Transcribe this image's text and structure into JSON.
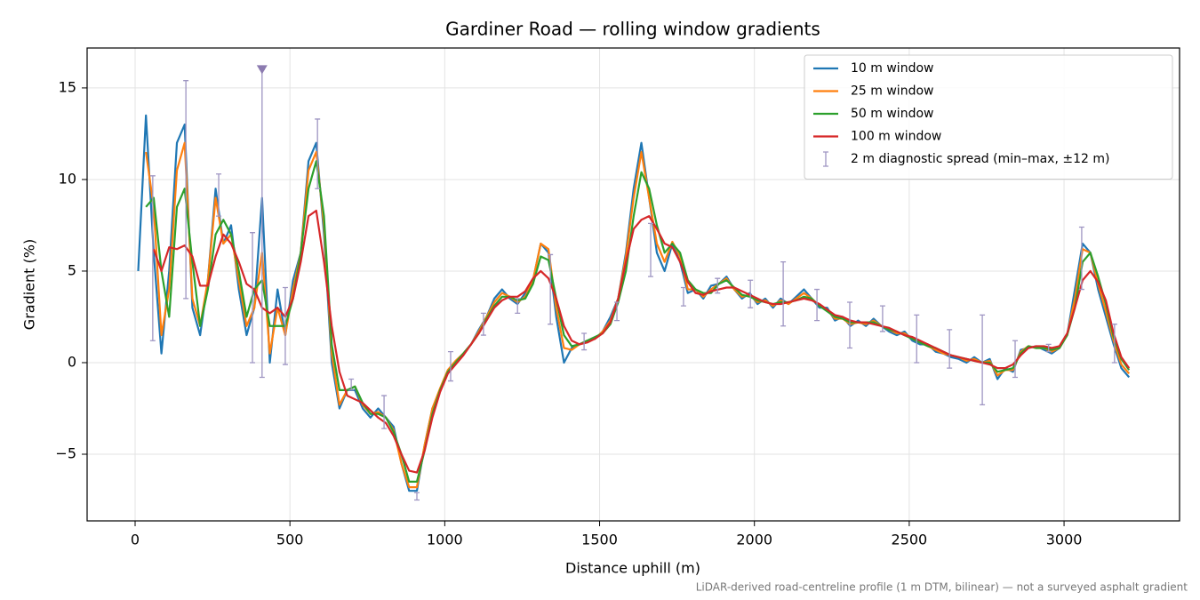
{
  "chart_data": {
    "type": "line",
    "title": "Gardiner Road — rolling window gradients",
    "xlabel": "Distance uphill (m)",
    "ylabel": "Gradient (%)",
    "footnote": "LiDAR-derived road-centreline profile (1 m DTM, bilinear) — not a surveyed asphalt gradient",
    "xlim": [
      -155,
      3373
    ],
    "ylim": [
      -8.64,
      17.18
    ],
    "xticks": [
      0,
      500,
      1000,
      1500,
      2000,
      2500,
      3000
    ],
    "yticks": [
      {
        "value": -5,
        "label": "−5"
      },
      0,
      5,
      10,
      15
    ],
    "grid": true,
    "legend": "upper right",
    "x": [
      10,
      35,
      60,
      85,
      110,
      135,
      160,
      185,
      210,
      235,
      260,
      285,
      310,
      335,
      360,
      385,
      410,
      435,
      460,
      485,
      510,
      535,
      560,
      585,
      610,
      635,
      660,
      685,
      710,
      735,
      760,
      785,
      810,
      835,
      860,
      885,
      910,
      935,
      960,
      985,
      1010,
      1035,
      1060,
      1085,
      1110,
      1135,
      1160,
      1185,
      1210,
      1235,
      1260,
      1285,
      1310,
      1335,
      1360,
      1385,
      1410,
      1435,
      1460,
      1485,
      1510,
      1535,
      1560,
      1585,
      1610,
      1635,
      1660,
      1685,
      1710,
      1735,
      1760,
      1785,
      1810,
      1835,
      1860,
      1885,
      1910,
      1935,
      1960,
      1985,
      2010,
      2035,
      2060,
      2085,
      2110,
      2135,
      2160,
      2185,
      2210,
      2235,
      2260,
      2285,
      2310,
      2335,
      2360,
      2385,
      2410,
      2435,
      2460,
      2485,
      2510,
      2535,
      2560,
      2585,
      2610,
      2635,
      2660,
      2685,
      2710,
      2735,
      2760,
      2785,
      2810,
      2835,
      2860,
      2885,
      2910,
      2935,
      2960,
      2985,
      3010,
      3035,
      3060,
      3085,
      3110,
      3135,
      3160,
      3185,
      3210
    ],
    "series": [
      {
        "name": "10 m window",
        "color": "#1f77b4",
        "values": [
          5.0,
          13.5,
          6.0,
          0.5,
          5.0,
          12.0,
          13.0,
          3.0,
          1.5,
          4.5,
          9.5,
          6.5,
          7.5,
          4.0,
          1.5,
          3.0,
          9.0,
          0.0,
          4.0,
          1.5,
          4.5,
          6.0,
          11.0,
          12.0,
          7.0,
          0.0,
          -2.5,
          -1.5,
          -1.5,
          -2.5,
          -3.0,
          -2.5,
          -3.0,
          -3.5,
          -5.5,
          -7.0,
          -7.0,
          -4.5,
          -2.5,
          -1.5,
          -0.5,
          0.0,
          0.5,
          1.0,
          1.8,
          2.5,
          3.5,
          4.0,
          3.5,
          3.2,
          3.8,
          4.5,
          6.5,
          6.0,
          2.5,
          0.0,
          0.8,
          1.0,
          1.2,
          1.3,
          1.7,
          2.5,
          3.5,
          6.0,
          9.5,
          12.0,
          9.0,
          6.0,
          5.0,
          6.5,
          5.5,
          3.8,
          4.0,
          3.5,
          4.2,
          4.3,
          4.7,
          4.0,
          3.5,
          3.8,
          3.2,
          3.5,
          3.0,
          3.5,
          3.2,
          3.6,
          4.0,
          3.5,
          3.0,
          3.0,
          2.3,
          2.5,
          2.0,
          2.3,
          2.0,
          2.4,
          2.0,
          1.7,
          1.5,
          1.7,
          1.2,
          1.0,
          1.0,
          0.6,
          0.5,
          0.3,
          0.2,
          0.0,
          0.3,
          0.0,
          0.2,
          -0.9,
          -0.3,
          -0.5,
          0.7,
          0.8,
          0.9,
          0.7,
          0.5,
          0.8,
          1.5,
          4.0,
          6.5,
          6.0,
          4.0,
          2.5,
          1.0,
          -0.3,
          -0.8
        ]
      },
      {
        "name": "25 m window",
        "color": "#ff7f0e",
        "values": [
          null,
          11.5,
          8.5,
          1.5,
          4.0,
          10.5,
          12.0,
          3.5,
          2.0,
          4.5,
          9.0,
          6.5,
          7.0,
          4.5,
          2.0,
          3.0,
          6.0,
          0.5,
          3.0,
          1.5,
          4.0,
          6.0,
          10.5,
          11.5,
          7.5,
          0.5,
          -2.3,
          -1.5,
          -1.3,
          -2.3,
          -2.8,
          -2.7,
          -3.0,
          -3.7,
          -5.5,
          -6.8,
          -6.8,
          -4.5,
          -2.5,
          -1.4,
          -0.4,
          0.1,
          0.5,
          1.0,
          1.7,
          2.5,
          3.3,
          3.8,
          3.6,
          3.3,
          3.6,
          4.5,
          6.5,
          6.2,
          3.0,
          0.8,
          0.7,
          1.0,
          1.2,
          1.3,
          1.7,
          2.3,
          3.5,
          5.8,
          9.0,
          11.5,
          9.0,
          6.5,
          5.5,
          6.6,
          5.8,
          4.0,
          4.0,
          3.6,
          4.0,
          4.3,
          4.6,
          4.0,
          3.6,
          3.7,
          3.3,
          3.4,
          3.1,
          3.4,
          3.2,
          3.5,
          3.8,
          3.5,
          3.1,
          2.9,
          2.4,
          2.4,
          2.1,
          2.2,
          2.1,
          2.3,
          2.0,
          1.8,
          1.6,
          1.6,
          1.3,
          1.1,
          0.9,
          0.7,
          0.5,
          0.4,
          0.3,
          0.1,
          0.2,
          0.0,
          0.1,
          -0.7,
          -0.4,
          -0.4,
          0.6,
          0.9,
          0.8,
          0.8,
          0.6,
          0.8,
          1.5,
          3.5,
          6.2,
          6.0,
          4.3,
          2.8,
          1.2,
          -0.1,
          -0.6
        ]
      },
      {
        "name": "50 m window",
        "color": "#2ca02c",
        "values": [
          null,
          8.5,
          9.0,
          5.0,
          2.5,
          8.5,
          9.5,
          5.5,
          2.0,
          4.0,
          7.0,
          7.8,
          7.0,
          5.0,
          2.5,
          4.0,
          4.5,
          2.0,
          2.0,
          2.0,
          3.5,
          6.0,
          9.5,
          11.0,
          8.0,
          1.0,
          -1.5,
          -1.5,
          -1.3,
          -2.2,
          -2.8,
          -2.8,
          -3.0,
          -3.8,
          -5.0,
          -6.5,
          -6.5,
          -4.8,
          -2.8,
          -1.5,
          -0.5,
          0.0,
          0.5,
          1.0,
          1.6,
          2.4,
          3.1,
          3.6,
          3.6,
          3.4,
          3.5,
          4.3,
          5.8,
          5.6,
          3.5,
          1.5,
          0.9,
          1.0,
          1.2,
          1.4,
          1.6,
          2.1,
          3.3,
          5.0,
          8.0,
          10.4,
          9.5,
          7.5,
          6.0,
          6.5,
          6.0,
          4.5,
          4.0,
          3.8,
          3.8,
          4.3,
          4.5,
          4.1,
          3.7,
          3.6,
          3.4,
          3.3,
          3.2,
          3.3,
          3.3,
          3.4,
          3.6,
          3.5,
          3.1,
          2.8,
          2.5,
          2.4,
          2.2,
          2.2,
          2.2,
          2.2,
          2.0,
          1.8,
          1.7,
          1.5,
          1.3,
          1.1,
          0.9,
          0.8,
          0.6,
          0.4,
          0.3,
          0.2,
          0.1,
          0.0,
          0.0,
          -0.5,
          -0.4,
          -0.3,
          0.5,
          0.9,
          0.8,
          0.8,
          0.7,
          0.8,
          1.5,
          3.0,
          5.5,
          6.0,
          4.7,
          3.2,
          1.4,
          0.2,
          -0.4
        ]
      },
      {
        "name": "100 m window",
        "color": "#d62728",
        "values": [
          null,
          null,
          6.2,
          5.0,
          6.3,
          6.2,
          6.4,
          5.8,
          4.2,
          4.2,
          5.8,
          7.0,
          6.5,
          5.5,
          4.3,
          4.0,
          3.0,
          2.7,
          3.0,
          2.5,
          3.5,
          5.5,
          8.0,
          8.3,
          5.5,
          2.0,
          -0.5,
          -1.8,
          -2.0,
          -2.2,
          -2.6,
          -3.0,
          -3.3,
          -4.0,
          -5.0,
          -5.9,
          -6.0,
          -4.8,
          -3.0,
          -1.6,
          -0.6,
          -0.1,
          0.4,
          1.0,
          1.6,
          2.3,
          3.0,
          3.4,
          3.6,
          3.6,
          3.9,
          4.6,
          5.0,
          4.6,
          3.5,
          2.0,
          1.2,
          1.0,
          1.1,
          1.3,
          1.6,
          2.2,
          3.5,
          5.5,
          7.3,
          7.8,
          8.0,
          7.3,
          6.5,
          6.3,
          5.5,
          4.4,
          3.8,
          3.7,
          3.9,
          4.0,
          4.1,
          4.1,
          3.9,
          3.7,
          3.5,
          3.3,
          3.2,
          3.2,
          3.3,
          3.4,
          3.5,
          3.4,
          3.2,
          2.9,
          2.6,
          2.5,
          2.3,
          2.2,
          2.2,
          2.1,
          2.0,
          1.9,
          1.7,
          1.5,
          1.4,
          1.2,
          1.0,
          0.8,
          0.6,
          0.4,
          0.3,
          0.2,
          0.1,
          0.0,
          -0.1,
          -0.3,
          -0.3,
          -0.1,
          0.4,
          0.8,
          0.9,
          0.9,
          0.8,
          0.9,
          1.6,
          3.0,
          4.5,
          5.0,
          4.4,
          3.4,
          1.6,
          0.3,
          -0.3
        ]
      }
    ],
    "errorbars": {
      "name": "2 m diagnostic spread (min–max, ±12 m)",
      "color": "#9e95c2",
      "x": [
        57,
        164,
        270,
        379,
        410,
        485,
        589,
        698,
        804,
        910,
        1019,
        1125,
        1235,
        1341,
        1450,
        1556,
        1665,
        1771,
        1881,
        1987,
        2093,
        2202,
        2308,
        2414,
        2524,
        2630,
        2736,
        2842,
        2950,
        3057,
        3163
      ],
      "low": [
        1.2,
        3.5,
        8.0,
        0.0,
        -0.8,
        -0.1,
        9.5,
        -1.5,
        -3.6,
        -7.5,
        -1.0,
        1.5,
        2.7,
        2.1,
        0.7,
        2.3,
        4.7,
        3.1,
        3.8,
        3.0,
        2.0,
        2.3,
        0.8,
        1.7,
        0.0,
        -0.3,
        -2.3,
        -0.8,
        0.6,
        4.0,
        0.0
      ],
      "high": [
        10.2,
        15.4,
        10.3,
        7.1,
        16,
        4.1,
        13.3,
        -0.9,
        -1.8,
        -7.1,
        0.6,
        2.7,
        3.5,
        5.9,
        1.6,
        3.3,
        7.6,
        4.1,
        4.6,
        4.5,
        5.5,
        4.0,
        3.3,
        3.1,
        2.6,
        1.8,
        2.6,
        1.2,
        1.0,
        7.4,
        2.1
      ]
    },
    "markers": {
      "color": "#8c7bb0",
      "x": [
        410
      ],
      "values": [
        16
      ]
    }
  }
}
